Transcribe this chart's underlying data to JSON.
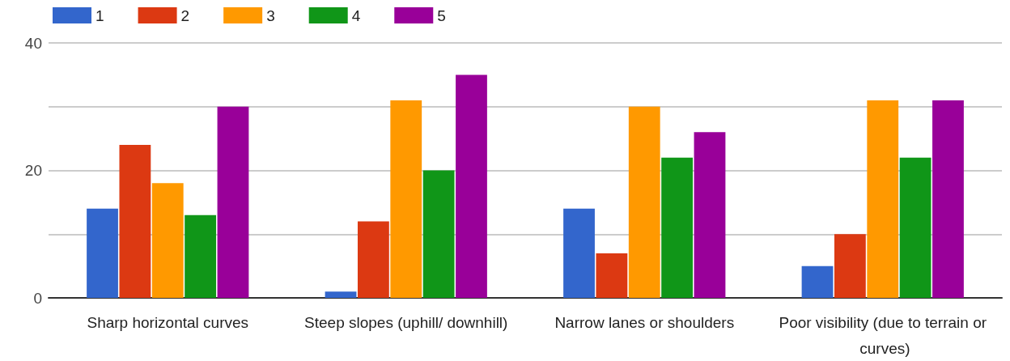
{
  "chart_data": {
    "type": "bar",
    "categories": [
      "Sharp horizontal curves",
      "Steep slopes (uphill/ downhill)",
      "Narrow lanes or shoulders",
      "Poor visibility (due to terrain or curves)"
    ],
    "series": [
      {
        "name": "1",
        "color": "#3366cc",
        "values": [
          14,
          1,
          14,
          5
        ]
      },
      {
        "name": "2",
        "color": "#dc3912",
        "values": [
          24,
          12,
          7,
          10
        ]
      },
      {
        "name": "3",
        "color": "#ff9900",
        "values": [
          18,
          31,
          30,
          31
        ]
      },
      {
        "name": "4",
        "color": "#109618",
        "values": [
          13,
          20,
          22,
          22
        ]
      },
      {
        "name": "5",
        "color": "#990099",
        "values": [
          30,
          35,
          26,
          31
        ]
      }
    ],
    "ylim": [
      0,
      40
    ],
    "yticks": [
      0,
      {
        "value": 10,
        "label": null
      },
      20,
      {
        "value": 30,
        "label": null
      },
      40
    ],
    "grid": "y",
    "legend": "top left"
  }
}
